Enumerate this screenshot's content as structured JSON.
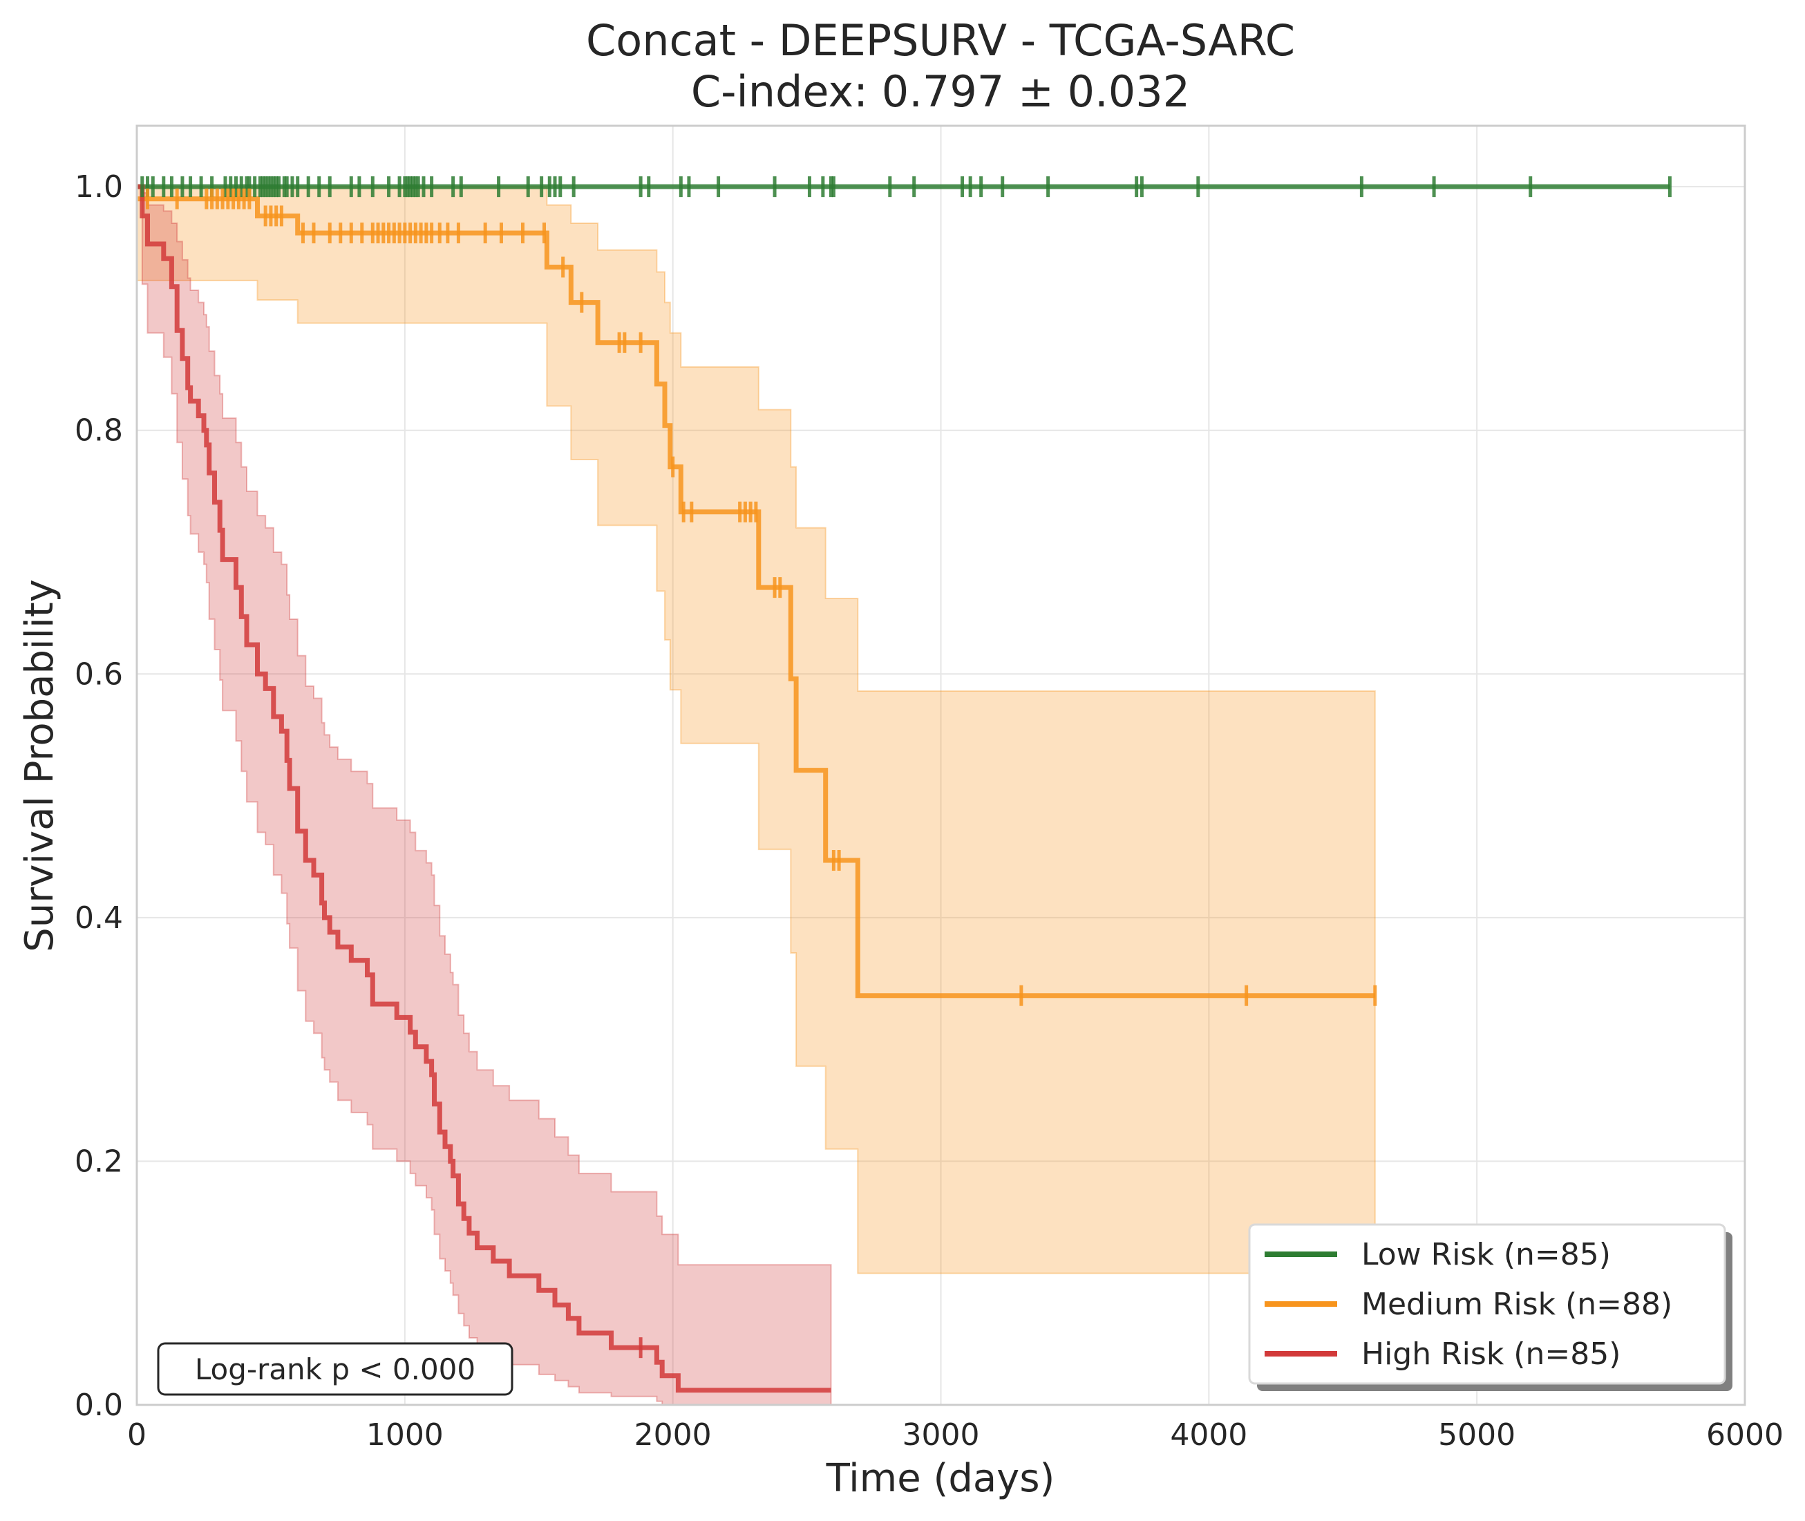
{
  "chart_data": {
    "type": "line",
    "subtype": "kaplan-meier",
    "title": "Concat - DEEPSURV - TCGA-SARC",
    "subtitle": "C-index: 0.797 ± 0.032",
    "xlabel": "Time (days)",
    "ylabel": "Survival Probability",
    "xlim": [
      0,
      6000
    ],
    "ylim": [
      0,
      1.05
    ],
    "x_ticks": [
      "0",
      "1000",
      "2000",
      "3000",
      "4000",
      "5000",
      "6000"
    ],
    "y_ticks": [
      "0.0",
      "0.2",
      "0.4",
      "0.6",
      "0.8",
      "1.0"
    ],
    "grid": true,
    "legend_position": "lower right",
    "annotation": "Log-rank p < 0.000",
    "series": [
      {
        "name": "Low Risk (n=85)",
        "color": "#2e7d32",
        "steps": [
          [
            0,
            1.0
          ],
          [
            5720,
            1.0
          ]
        ],
        "ci": [
          [
            0,
            1.0,
            1.0
          ],
          [
            5720,
            1.0,
            1.0
          ]
        ],
        "censored": [
          20,
          40,
          60,
          100,
          130,
          170,
          200,
          240,
          280,
          330,
          350,
          370,
          390,
          410,
          420,
          440,
          460,
          470,
          480,
          490,
          500,
          510,
          520,
          530,
          550,
          560,
          580,
          600,
          640,
          680,
          720,
          800,
          830,
          880,
          940,
          980,
          1000,
          1010,
          1020,
          1030,
          1040,
          1050,
          1070,
          1100,
          1180,
          1210,
          1350,
          1460,
          1510,
          1540,
          1560,
          1580,
          1630,
          1880,
          1910,
          2030,
          2060,
          2170,
          2380,
          2510,
          2560,
          2590,
          2600,
          2810,
          2900,
          3080,
          3110,
          3150,
          3230,
          3400,
          3730,
          3750,
          3960,
          4570,
          4840,
          5200,
          5720
        ]
      },
      {
        "name": "Medium Risk (n=88)",
        "color": "#f7941d",
        "steps": [
          [
            0,
            0.99
          ],
          [
            450,
            0.976
          ],
          [
            600,
            0.962
          ],
          [
            1530,
            0.934
          ],
          [
            1620,
            0.905
          ],
          [
            1720,
            0.872
          ],
          [
            1940,
            0.838
          ],
          [
            1970,
            0.804
          ],
          [
            1990,
            0.77
          ],
          [
            2030,
            0.733
          ],
          [
            2320,
            0.671
          ],
          [
            2440,
            0.596
          ],
          [
            2460,
            0.521
          ],
          [
            2570,
            0.447
          ],
          [
            2690,
            0.336
          ],
          [
            4620,
            0.336
          ]
        ],
        "ci": [
          [
            0,
            0.923,
            1.0
          ],
          [
            450,
            0.907,
            1.0
          ],
          [
            600,
            0.888,
            1.0
          ],
          [
            1530,
            0.82,
            0.985
          ],
          [
            1620,
            0.776,
            0.97
          ],
          [
            1720,
            0.722,
            0.948
          ],
          [
            1940,
            0.668,
            0.93
          ],
          [
            1970,
            0.628,
            0.905
          ],
          [
            1990,
            0.587,
            0.88
          ],
          [
            2030,
            0.543,
            0.852
          ],
          [
            2320,
            0.456,
            0.817
          ],
          [
            2440,
            0.371,
            0.77
          ],
          [
            2460,
            0.278,
            0.72
          ],
          [
            2570,
            0.21,
            0.662
          ],
          [
            2690,
            0.108,
            0.586
          ],
          [
            4620,
            0.108,
            0.586
          ]
        ],
        "censored": [
          40,
          150,
          260,
          280,
          300,
          320,
          340,
          360,
          380,
          400,
          420,
          480,
          500,
          520,
          540,
          620,
          660,
          720,
          760,
          800,
          840,
          880,
          900,
          920,
          940,
          960,
          980,
          1000,
          1020,
          1040,
          1060,
          1080,
          1100,
          1130,
          1160,
          1200,
          1300,
          1360,
          1440,
          1520,
          1590,
          1660,
          1800,
          1820,
          1880,
          2000,
          2040,
          2070,
          2250,
          2270,
          2290,
          2310,
          2380,
          2400,
          2600,
          2620,
          3300,
          4140,
          4620
        ]
      },
      {
        "name": "High Risk (n=85)",
        "color": "#d23a3a",
        "steps": [
          [
            0,
            1.0
          ],
          [
            20,
            0.976
          ],
          [
            40,
            0.953
          ],
          [
            100,
            0.941
          ],
          [
            130,
            0.918
          ],
          [
            150,
            0.882
          ],
          [
            170,
            0.859
          ],
          [
            190,
            0.835
          ],
          [
            200,
            0.824
          ],
          [
            230,
            0.812
          ],
          [
            250,
            0.8
          ],
          [
            260,
            0.788
          ],
          [
            270,
            0.765
          ],
          [
            290,
            0.741
          ],
          [
            310,
            0.718
          ],
          [
            320,
            0.694
          ],
          [
            370,
            0.671
          ],
          [
            390,
            0.647
          ],
          [
            410,
            0.624
          ],
          [
            450,
            0.6
          ],
          [
            480,
            0.588
          ],
          [
            510,
            0.565
          ],
          [
            540,
            0.553
          ],
          [
            560,
            0.529
          ],
          [
            570,
            0.506
          ],
          [
            600,
            0.471
          ],
          [
            630,
            0.447
          ],
          [
            660,
            0.435
          ],
          [
            690,
            0.412
          ],
          [
            700,
            0.4
          ],
          [
            720,
            0.388
          ],
          [
            750,
            0.376
          ],
          [
            800,
            0.365
          ],
          [
            860,
            0.353
          ],
          [
            880,
            0.329
          ],
          [
            970,
            0.318
          ],
          [
            1020,
            0.306
          ],
          [
            1040,
            0.294
          ],
          [
            1080,
            0.282
          ],
          [
            1100,
            0.271
          ],
          [
            1110,
            0.247
          ],
          [
            1130,
            0.224
          ],
          [
            1150,
            0.212
          ],
          [
            1170,
            0.2
          ],
          [
            1180,
            0.188
          ],
          [
            1200,
            0.165
          ],
          [
            1220,
            0.153
          ],
          [
            1240,
            0.141
          ],
          [
            1270,
            0.129
          ],
          [
            1330,
            0.118
          ],
          [
            1390,
            0.106
          ],
          [
            1500,
            0.094
          ],
          [
            1560,
            0.082
          ],
          [
            1610,
            0.071
          ],
          [
            1650,
            0.059
          ],
          [
            1770,
            0.047
          ],
          [
            1940,
            0.035
          ],
          [
            1960,
            0.024
          ],
          [
            2020,
            0.012
          ],
          [
            2590,
            0.012
          ]
        ],
        "ci": [
          [
            0,
            1.0,
            1.0
          ],
          [
            20,
            0.92,
            0.995
          ],
          [
            40,
            0.88,
            0.985
          ],
          [
            100,
            0.86,
            0.98
          ],
          [
            130,
            0.83,
            0.97
          ],
          [
            150,
            0.79,
            0.955
          ],
          [
            170,
            0.76,
            0.94
          ],
          [
            190,
            0.73,
            0.925
          ],
          [
            200,
            0.715,
            0.915
          ],
          [
            230,
            0.7,
            0.905
          ],
          [
            250,
            0.69,
            0.895
          ],
          [
            260,
            0.675,
            0.885
          ],
          [
            270,
            0.645,
            0.865
          ],
          [
            290,
            0.62,
            0.845
          ],
          [
            310,
            0.595,
            0.83
          ],
          [
            320,
            0.57,
            0.81
          ],
          [
            370,
            0.545,
            0.79
          ],
          [
            390,
            0.52,
            0.77
          ],
          [
            410,
            0.495,
            0.75
          ],
          [
            450,
            0.47,
            0.73
          ],
          [
            480,
            0.46,
            0.72
          ],
          [
            510,
            0.435,
            0.7
          ],
          [
            540,
            0.42,
            0.69
          ],
          [
            560,
            0.395,
            0.665
          ],
          [
            570,
            0.375,
            0.645
          ],
          [
            600,
            0.34,
            0.615
          ],
          [
            630,
            0.315,
            0.59
          ],
          [
            660,
            0.305,
            0.58
          ],
          [
            690,
            0.285,
            0.56
          ],
          [
            700,
            0.275,
            0.55
          ],
          [
            720,
            0.265,
            0.54
          ],
          [
            750,
            0.25,
            0.53
          ],
          [
            800,
            0.24,
            0.52
          ],
          [
            860,
            0.23,
            0.51
          ],
          [
            880,
            0.21,
            0.49
          ],
          [
            970,
            0.2,
            0.48
          ],
          [
            1020,
            0.19,
            0.47
          ],
          [
            1040,
            0.18,
            0.455
          ],
          [
            1080,
            0.17,
            0.445
          ],
          [
            1100,
            0.16,
            0.435
          ],
          [
            1110,
            0.14,
            0.41
          ],
          [
            1130,
            0.12,
            0.385
          ],
          [
            1150,
            0.11,
            0.37
          ],
          [
            1170,
            0.1,
            0.355
          ],
          [
            1180,
            0.09,
            0.345
          ],
          [
            1200,
            0.075,
            0.32
          ],
          [
            1220,
            0.065,
            0.305
          ],
          [
            1240,
            0.055,
            0.29
          ],
          [
            1270,
            0.05,
            0.275
          ],
          [
            1330,
            0.04,
            0.262
          ],
          [
            1390,
            0.033,
            0.25
          ],
          [
            1500,
            0.025,
            0.235
          ],
          [
            1560,
            0.02,
            0.22
          ],
          [
            1610,
            0.015,
            0.205
          ],
          [
            1650,
            0.01,
            0.19
          ],
          [
            1770,
            0.007,
            0.175
          ],
          [
            1940,
            0.003,
            0.155
          ],
          [
            1960,
            0.0,
            0.14
          ],
          [
            2020,
            0.0,
            0.115
          ],
          [
            2590,
            0.0,
            0.115
          ]
        ],
        "censored": [
          1880
        ]
      }
    ]
  }
}
